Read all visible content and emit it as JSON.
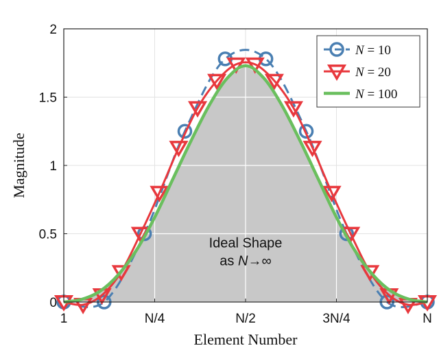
{
  "chart_data": {
    "type": "line",
    "title": "",
    "xlabel": "Element Number",
    "ylabel": "Magnitude",
    "xlim": [
      0,
      1
    ],
    "ylim": [
      0,
      2
    ],
    "grid": true,
    "legend_position": "top-right",
    "x_ticks": [
      {
        "value": 0,
        "label": "1"
      },
      {
        "value": 0.25,
        "label": "N/4"
      },
      {
        "value": 0.5,
        "label": "N/2"
      },
      {
        "value": 0.75,
        "label": "3N/4"
      },
      {
        "value": 1,
        "label": "N"
      }
    ],
    "y_ticks": [
      {
        "value": 0,
        "label": "0"
      },
      {
        "value": 0.5,
        "label": "0.5"
      },
      {
        "value": 1,
        "label": "1"
      },
      {
        "value": 1.5,
        "label": "1.5"
      },
      {
        "value": 2,
        "label": "2"
      }
    ],
    "annotation": {
      "line1": "Ideal Shape",
      "line2": "as N→∞",
      "x": 0.5,
      "y": 0.5
    },
    "ideal_shape": {
      "name": "Ideal Shape",
      "color": "#c8c8c8",
      "x": [
        0,
        0.05,
        0.1,
        0.15,
        0.2,
        0.25,
        0.3,
        0.35,
        0.4,
        0.45,
        0.5,
        0.55,
        0.6,
        0.65,
        0.7,
        0.75,
        0.8,
        0.85,
        0.9,
        0.95,
        1
      ],
      "y": [
        0,
        0.02,
        0.08,
        0.2,
        0.38,
        0.62,
        0.9,
        1.18,
        1.44,
        1.64,
        1.73,
        1.64,
        1.44,
        1.18,
        0.9,
        0.62,
        0.38,
        0.2,
        0.08,
        0.02,
        0
      ]
    },
    "series": [
      {
        "name": "N = 10",
        "legend_var": "N",
        "legend_value": "10",
        "color": "#4a7fb2",
        "line_style": "dashed",
        "marker": "circle",
        "x": [
          0,
          0.111,
          0.222,
          0.333,
          0.444,
          0.556,
          0.667,
          0.778,
          0.889,
          1
        ],
        "y": [
          0.0,
          0.0,
          0.5,
          1.25,
          1.78,
          1.78,
          1.25,
          0.5,
          0.0,
          0.0
        ]
      },
      {
        "name": "N = 20",
        "legend_var": "N",
        "legend_value": "20",
        "color": "#e8383d",
        "line_style": "solid",
        "marker": "triangle-down",
        "x": [
          0,
          0.053,
          0.105,
          0.158,
          0.211,
          0.263,
          0.316,
          0.368,
          0.421,
          0.474,
          0.526,
          0.579,
          0.632,
          0.684,
          0.737,
          0.789,
          0.842,
          0.895,
          0.947,
          1
        ],
        "y": [
          0.0,
          -0.02,
          0.05,
          0.22,
          0.5,
          0.8,
          1.13,
          1.42,
          1.62,
          1.74,
          1.74,
          1.62,
          1.42,
          1.13,
          0.8,
          0.5,
          0.22,
          0.05,
          -0.02,
          0.0
        ]
      },
      {
        "name": "N = 100",
        "legend_var": "N",
        "legend_value": "100",
        "color": "#6abf5e",
        "line_style": "solid",
        "marker": "none",
        "x": [
          0,
          0.05,
          0.1,
          0.15,
          0.2,
          0.25,
          0.3,
          0.35,
          0.4,
          0.45,
          0.5,
          0.55,
          0.6,
          0.65,
          0.7,
          0.75,
          0.8,
          0.85,
          0.9,
          0.95,
          1
        ],
        "y": [
          0,
          0.02,
          0.08,
          0.2,
          0.38,
          0.62,
          0.9,
          1.18,
          1.44,
          1.64,
          1.73,
          1.64,
          1.44,
          1.18,
          0.9,
          0.62,
          0.38,
          0.2,
          0.08,
          0.02,
          0
        ]
      }
    ]
  }
}
